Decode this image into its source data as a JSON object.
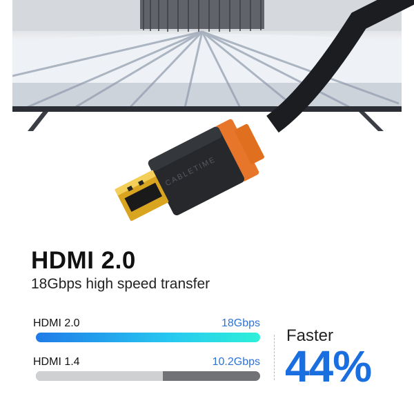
{
  "product": {
    "brand_logo": "CABLETIME",
    "title": "HDMI 2.0",
    "subtitle": "18Gbps high speed transfer"
  },
  "comparison": {
    "bars": [
      {
        "label": "HDMI 2.0",
        "value_text": "18Gbps",
        "value": 18,
        "fill_percent": 100
      },
      {
        "label": "HDMI 1.4",
        "value_text": "10.2Gbps",
        "value": 10.2,
        "fill_percent": 56.7
      }
    ],
    "faster_label": "Faster",
    "faster_percent": "44%"
  },
  "colors": {
    "accent_blue": "#1a6fe0",
    "connector_orange": "#e8762a",
    "cable_black": "#1c1d20",
    "gold": "#d9a521"
  }
}
